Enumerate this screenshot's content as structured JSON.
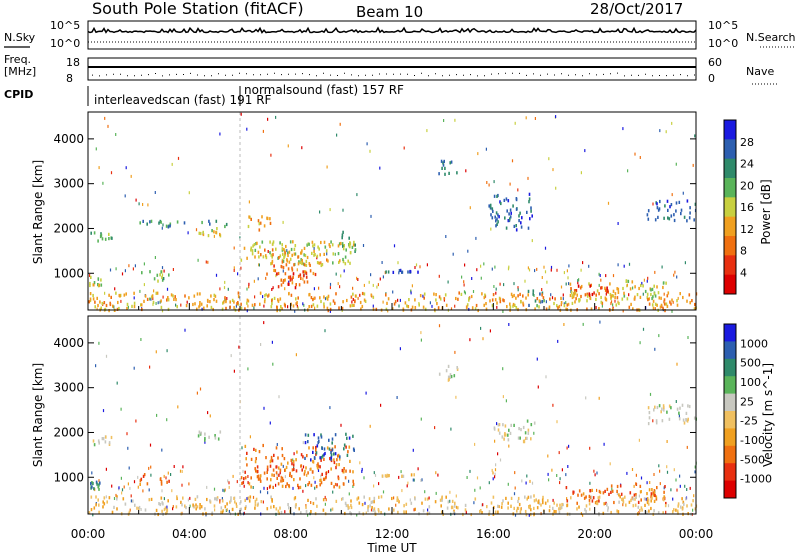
{
  "header": {
    "title": "South Pole Station (fitACF)",
    "beam": "Beam 10",
    "date": "28/Oct/2017"
  },
  "panels": {
    "nsky": {
      "left_label": "N.Sky",
      "right_label": "N.Search",
      "left_ticks": [
        "10^5",
        "10^0"
      ],
      "right_ticks": [
        "10^5",
        "10^0"
      ]
    },
    "freq": {
      "left_label_1": "Freq.",
      "left_label_2": "[MHz]",
      "right_label": "Nave",
      "left_ticks": [
        "18",
        "8"
      ],
      "right_ticks": [
        "60",
        "0"
      ]
    },
    "cpid": {
      "label": "CPID",
      "entries": [
        "interleavedscan (fast)  191 RF",
        "normalsound (fast)  157 RF"
      ]
    }
  },
  "chart_data": [
    {
      "type": "heatmap",
      "title": "",
      "ylabel": "Slant Range [km]",
      "xlabel": "",
      "x_range_hours": [
        0,
        24
      ],
      "ylim": [
        180,
        4600
      ],
      "yticks": [
        1000,
        2000,
        3000,
        4000
      ],
      "colorbar": {
        "label": "Power [dB]",
        "ticks": [
          "4",
          "8",
          "12",
          "16",
          "20",
          "24",
          "28"
        ],
        "colors": [
          "#1a1ae0",
          "#2d5fb0",
          "#2f8a6a",
          "#5ab45a",
          "#c8d040",
          "#f0a020",
          "#f07010",
          "#e83010",
          "#dd0000"
        ]
      },
      "regions": [
        {
          "x0": 0.05,
          "x1": 1.0,
          "y0": 1750,
          "y1": 1950,
          "c": 3
        },
        {
          "x0": 0.0,
          "x1": 0.5,
          "y0": 750,
          "y1": 950,
          "c": 4
        },
        {
          "x0": 2.0,
          "x1": 3.2,
          "y0": 850,
          "y1": 1100,
          "c": 3
        },
        {
          "x0": 2.0,
          "x1": 5.5,
          "y0": 2050,
          "y1": 2200,
          "c": 2
        },
        {
          "x0": 4.3,
          "x1": 5.2,
          "y0": 1850,
          "y1": 2050,
          "c": 4
        },
        {
          "x0": 6.0,
          "x1": 7.2,
          "y0": 2000,
          "y1": 2300,
          "c": 5
        },
        {
          "x0": 6.0,
          "x1": 10.5,
          "y0": 1200,
          "y1": 1750,
          "c": 4
        },
        {
          "x0": 6.5,
          "x1": 9.5,
          "y0": 1250,
          "y1": 1600,
          "c": 5
        },
        {
          "x0": 7.0,
          "x1": 9.0,
          "y0": 800,
          "y1": 1250,
          "c": 6
        },
        {
          "x0": 7.4,
          "x1": 8.4,
          "y0": 700,
          "y1": 1050,
          "c": 7
        },
        {
          "x0": 10.0,
          "x1": 10.6,
          "y0": 1500,
          "y1": 2000,
          "c": 3
        },
        {
          "x0": 11.5,
          "x1": 13.0,
          "y0": 1050,
          "y1": 1100,
          "c": 1
        },
        {
          "x0": 13.8,
          "x1": 14.6,
          "y0": 3200,
          "y1": 3550,
          "c": 1
        },
        {
          "x0": 15.8,
          "x1": 17.6,
          "y0": 2000,
          "y1": 2800,
          "c": 1
        },
        {
          "x0": 17.3,
          "x1": 18.0,
          "y0": 300,
          "y1": 700,
          "c": 2
        },
        {
          "x0": 18.8,
          "x1": 21.0,
          "y0": 450,
          "y1": 800,
          "c": 5
        },
        {
          "x0": 19.0,
          "x1": 20.5,
          "y0": 500,
          "y1": 750,
          "c": 7
        },
        {
          "x0": 21.0,
          "x1": 22.8,
          "y0": 450,
          "y1": 900,
          "c": 4
        },
        {
          "x0": 22.0,
          "x1": 24.0,
          "y0": 2200,
          "y1": 2650,
          "c": 1
        },
        {
          "x0": 0.0,
          "x1": 24.0,
          "y0": 200,
          "y1": 600,
          "c": 5
        }
      ]
    },
    {
      "type": "heatmap",
      "title": "",
      "ylabel": "Slant Range [km]",
      "xlabel": "Time UT",
      "x_range_hours": [
        0,
        24
      ],
      "ylim": [
        180,
        4600
      ],
      "yticks": [
        1000,
        2000,
        3000,
        4000
      ],
      "xticks": [
        "00:00",
        "04:00",
        "08:00",
        "12:00",
        "16:00",
        "20:00",
        "00:00"
      ],
      "colorbar": {
        "label": "Velocity [m s^-1]",
        "ticks": [
          "1000",
          "500",
          "100",
          "25",
          "-25",
          "-100",
          "-500",
          "-1000"
        ],
        "colors": [
          "#1a1ae0",
          "#2d5fb0",
          "#2f8a6a",
          "#5ab45a",
          "#c8c8c0",
          "#f0c060",
          "#f0a020",
          "#f07010",
          "#e83010",
          "#dd0000"
        ]
      },
      "regions": [
        {
          "x0": 0.05,
          "x1": 1.0,
          "y0": 1750,
          "y1": 1950,
          "c": 4
        },
        {
          "x0": 0.0,
          "x1": 0.5,
          "y0": 750,
          "y1": 950,
          "c": 2
        },
        {
          "x0": 2.0,
          "x1": 3.2,
          "y0": 850,
          "y1": 1100,
          "c": 7
        },
        {
          "x0": 4.3,
          "x1": 5.2,
          "y0": 1850,
          "y1": 2050,
          "c": 4
        },
        {
          "x0": 6.0,
          "x1": 10.5,
          "y0": 800,
          "y1": 1750,
          "c": 7
        },
        {
          "x0": 8.5,
          "x1": 10.5,
          "y0": 1400,
          "y1": 2000,
          "c": 1
        },
        {
          "x0": 11.5,
          "x1": 13.0,
          "y0": 1050,
          "y1": 1100,
          "c": 5
        },
        {
          "x0": 13.8,
          "x1": 14.6,
          "y0": 3200,
          "y1": 3550,
          "c": 4
        },
        {
          "x0": 15.8,
          "x1": 17.6,
          "y0": 1800,
          "y1": 2300,
          "c": 4
        },
        {
          "x0": 17.3,
          "x1": 18.0,
          "y0": 300,
          "y1": 700,
          "c": 5
        },
        {
          "x0": 18.8,
          "x1": 21.0,
          "y0": 400,
          "y1": 850,
          "c": 7
        },
        {
          "x0": 21.0,
          "x1": 22.8,
          "y0": 450,
          "y1": 900,
          "c": 7
        },
        {
          "x0": 22.0,
          "x1": 24.0,
          "y0": 2200,
          "y1": 2650,
          "c": 4
        },
        {
          "x0": 0.0,
          "x1": 24.0,
          "y0": 200,
          "y1": 600,
          "c": 5
        }
      ]
    }
  ]
}
